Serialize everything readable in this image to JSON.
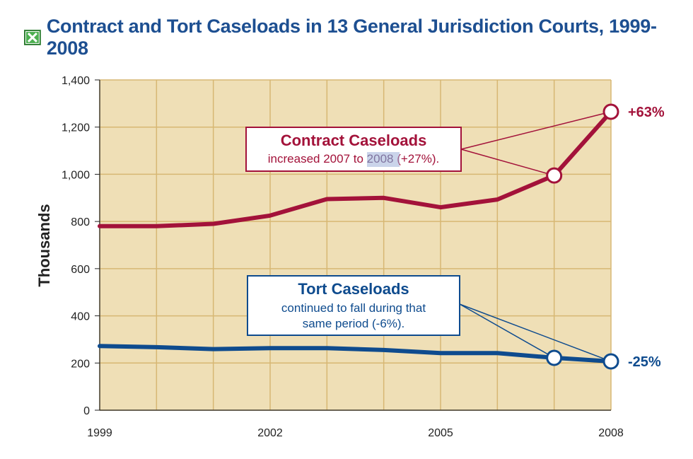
{
  "title": "Contract and Tort Caseloads in 13 General Jurisdiction Courts, 1999-2008",
  "colors": {
    "contract": "#a3123a",
    "tort": "#0e4b8e",
    "plot_bg": "#efdfb6",
    "grid": "#d7b773",
    "title": "#1d4f91"
  },
  "chart_data": {
    "type": "line",
    "title": "Contract and Tort Caseloads in 13 General Jurisdiction Courts, 1999-2008",
    "xlabel": "",
    "ylabel": "Thousands",
    "x": [
      1999,
      2000,
      2001,
      2002,
      2003,
      2004,
      2005,
      2006,
      2007,
      2008
    ],
    "x_tick_labels": [
      "1999",
      "2002",
      "2005",
      "2008"
    ],
    "x_tick_values": [
      1999,
      2002,
      2005,
      2008
    ],
    "ylim": [
      0,
      1400
    ],
    "y_ticks": [
      0,
      200,
      400,
      600,
      800,
      1000,
      1200,
      1400
    ],
    "y_tick_labels": [
      "0",
      "200",
      "400",
      "600",
      "800",
      "1,000",
      "1,200",
      "1,400"
    ],
    "grid": true,
    "series": [
      {
        "name": "Contract Caseloads",
        "color": "#a3123a",
        "values": [
          780,
          780,
          790,
          825,
          895,
          900,
          860,
          893,
          995,
          1265
        ]
      },
      {
        "name": "Tort Caseloads",
        "color": "#0e4b8e",
        "values": [
          272,
          267,
          259,
          263,
          263,
          255,
          242,
          242,
          222,
          207
        ]
      }
    ],
    "annotations": {
      "contract_end_label": "+63%",
      "tort_end_label": "-25%",
      "contract_callout": {
        "title": "Contract Caseloads",
        "line1_pre": "increased 2007 to ",
        "line1_highlight": "2008",
        "line1_post": " (+27%)."
      },
      "tort_callout": {
        "title": "Tort Caseloads",
        "line1": "continued to fall during that",
        "line2": "same period (-6%)."
      }
    }
  }
}
